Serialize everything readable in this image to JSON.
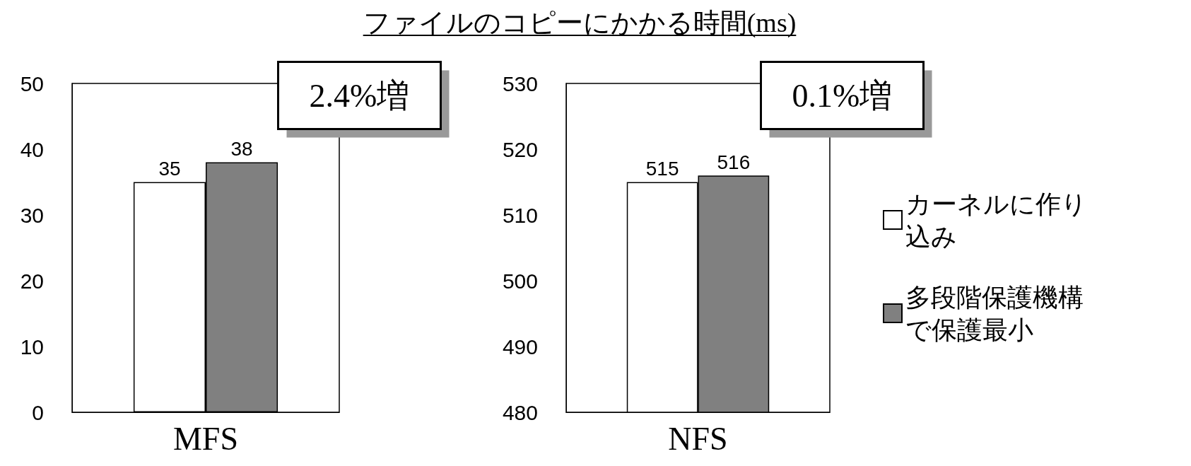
{
  "chart_data": [
    {
      "type": "bar",
      "categories": [
        "MFS"
      ],
      "series": [
        {
          "color": "#ffffff",
          "values": [
            35
          ]
        },
        {
          "color": "#808080",
          "values": [
            38
          ]
        }
      ],
      "ylim": [
        0,
        50
      ],
      "yticks": [
        0,
        10,
        20,
        30,
        40,
        50
      ],
      "data_labels": true,
      "grid": false,
      "legend": false,
      "annotations": [
        "2.4%増"
      ]
    },
    {
      "type": "bar",
      "title": "ファイルのコピーにかかる時間(ms)",
      "categories": [
        "NFS"
      ],
      "series": [
        {
          "name": "カーネルに作り込み",
          "color": "#ffffff",
          "values": [
            515
          ]
        },
        {
          "name": "多段階保護機構で保護最小",
          "color": "#808080",
          "values": [
            516
          ]
        }
      ],
      "ylim": [
        480,
        530
      ],
      "yticks": [
        480,
        490,
        500,
        510,
        520,
        530
      ],
      "data_labels": true,
      "grid": false,
      "legend": "right",
      "annotations": [
        "0.1%増"
      ]
    }
  ]
}
